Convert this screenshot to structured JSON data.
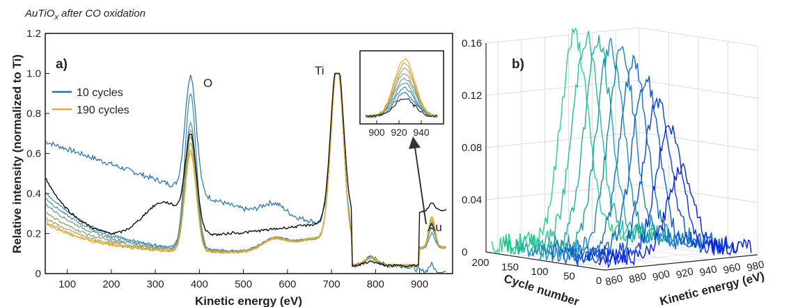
{
  "figure": {
    "title_main": "AuTiO",
    "title_sub": "x",
    "title_rest": " after CO oxidation"
  },
  "chart_data": [
    {
      "panel": "a)",
      "type": "line",
      "xlabel": "Kinetic energy (eV)",
      "ylabel": "Relative intensity (normalized to Ti)",
      "xlim": [
        50,
        975
      ],
      "ylim": [
        0,
        1.2
      ],
      "xticks": [
        100,
        200,
        300,
        400,
        500,
        600,
        700,
        800,
        900
      ],
      "yticks": [
        0,
        0.2,
        0.4,
        0.6,
        0.8,
        1.0,
        1.2
      ],
      "ytick_labels": [
        "0",
        "0.2",
        "0.4",
        "0.6",
        "0.8",
        "1.0",
        "1.2"
      ],
      "legend": {
        "position": "top-left",
        "entries": [
          "10 cycles",
          "190 cycles"
        ]
      },
      "peak_labels": [
        "O",
        "Ti",
        "Au"
      ],
      "series": [
        {
          "name": "10 cycles",
          "color": "#1f6fb4",
          "baseline": 0.66,
          "o_peak": 0.99,
          "ti_peak": 1.0,
          "au_peak": 0.05
        },
        {
          "color": "#3a83a8",
          "baseline": 0.43,
          "o_peak": 0.9,
          "ti_peak": 1.0,
          "au_peak": 0.07
        },
        {
          "color": "#4f8e9c",
          "baseline": 0.4,
          "o_peak": 0.75,
          "ti_peak": 1.0,
          "au_peak": 0.1
        },
        {
          "color": "#6a9688",
          "baseline": 0.37,
          "o_peak": 0.72,
          "ti_peak": 1.0,
          "au_peak": 0.12
        },
        {
          "color": "#889876",
          "baseline": 0.33,
          "o_peak": 0.68,
          "ti_peak": 1.0,
          "au_peak": 0.13
        },
        {
          "color": "#a8a05a",
          "baseline": 0.3,
          "o_peak": 0.65,
          "ti_peak": 1.0,
          "au_peak": 0.14
        },
        {
          "color": "#c9a83e",
          "baseline": 0.28,
          "o_peak": 0.62,
          "ti_peak": 1.0,
          "au_peak": 0.15
        },
        {
          "name": "190 cycles",
          "color": "#e6aa2e",
          "baseline": 0.27,
          "o_peak": 0.6,
          "ti_peak": 1.0,
          "au_peak": 0.16
        },
        {
          "color": "#111111",
          "baseline": 0.37,
          "o_peak": 0.7,
          "ti_peak": 1.0,
          "au_peak": 0.04
        }
      ],
      "inset": {
        "xticks": [
          900,
          920,
          940
        ],
        "xlim": [
          890,
          955
        ],
        "annotation": "*"
      }
    },
    {
      "panel": "b)",
      "type": "line",
      "projection": "3d",
      "xlabel": "Kinetic energy (eV)",
      "ylabel": "Cycle number",
      "xlim": [
        850,
        980
      ],
      "xticks": [
        860,
        880,
        900,
        920,
        940,
        960,
        980
      ],
      "yticks": [
        0,
        50,
        100,
        150,
        200
      ],
      "zlim": [
        0,
        0.16
      ],
      "zticks": [
        0,
        0.04,
        0.08,
        0.12,
        0.16
      ],
      "ztick_labels": [
        "0",
        "0.04",
        "0.08",
        "0.12",
        "0.16"
      ],
      "cycles": [
        10,
        30,
        50,
        70,
        90,
        110,
        130,
        150,
        170,
        190
      ],
      "peak_heights": [
        0.065,
        0.095,
        0.115,
        0.13,
        0.14,
        0.148,
        0.15,
        0.152,
        0.154,
        0.155
      ],
      "peak_center_ev": 920
    }
  ]
}
